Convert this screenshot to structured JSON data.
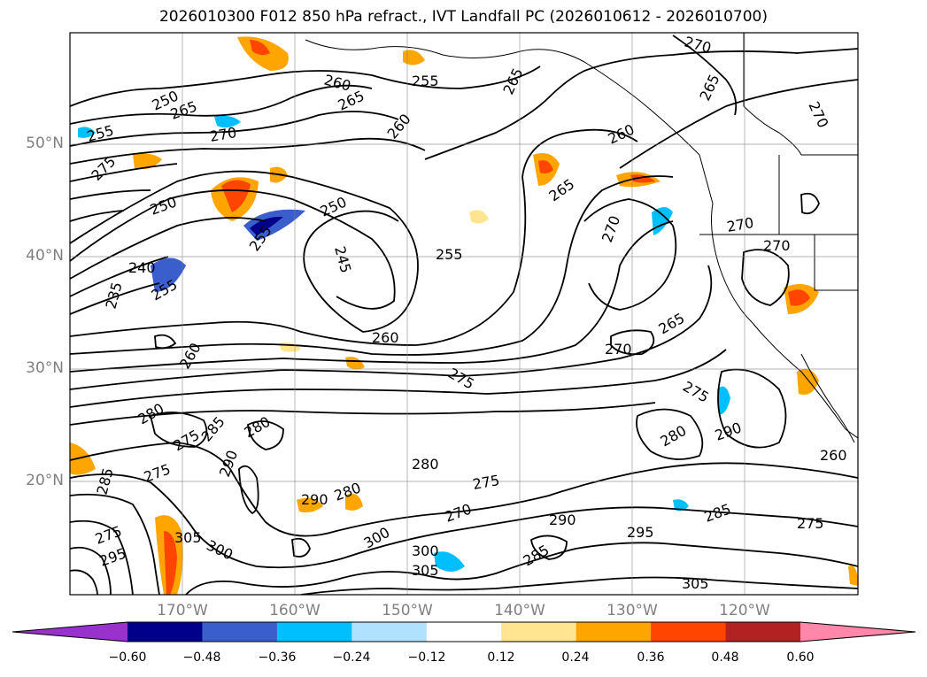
{
  "title": "2026010300 F012 850 hPa refract., IVT Landfall PC (2026010612 - 2026010700)",
  "lat_labels": [
    "50°N",
    "40°N",
    "30°N",
    "20°N"
  ],
  "lon_labels": [
    "170°W",
    "160°W",
    "150°W",
    "140°W",
    "130°W",
    "120°W"
  ],
  "colorbar": {
    "ticks": [
      "−0.60",
      "−0.48",
      "−0.36",
      "−0.24",
      "−0.12",
      "0.12",
      "0.24",
      "0.36",
      "0.48",
      "0.60"
    ],
    "colors": [
      "#9932cc",
      "#00008b",
      "#3a5fcd",
      "#00bfff",
      "#b0e2ff",
      "#ffffff",
      "#ffe58f",
      "#ffa500",
      "#ff4500",
      "#b22222",
      "#ff88aa"
    ]
  },
  "contour_labels": [
    "250",
    "265",
    "255",
    "270",
    "275",
    "250",
    "255",
    "260",
    "255",
    "265",
    "260",
    "270",
    "265",
    "270",
    "265",
    "260",
    "265",
    "250",
    "245",
    "255",
    "240",
    "235",
    "255",
    "260",
    "270",
    "270",
    "265",
    "270",
    "270",
    "275",
    "260",
    "280",
    "275",
    "285",
    "290",
    "275",
    "280",
    "290",
    "280",
    "285",
    "280",
    "275",
    "260",
    "290",
    "280",
    "275",
    "290",
    "305",
    "300",
    "275",
    "295",
    "300",
    "305",
    "270",
    "300",
    "295",
    "285",
    "305",
    "275",
    "285"
  ]
}
